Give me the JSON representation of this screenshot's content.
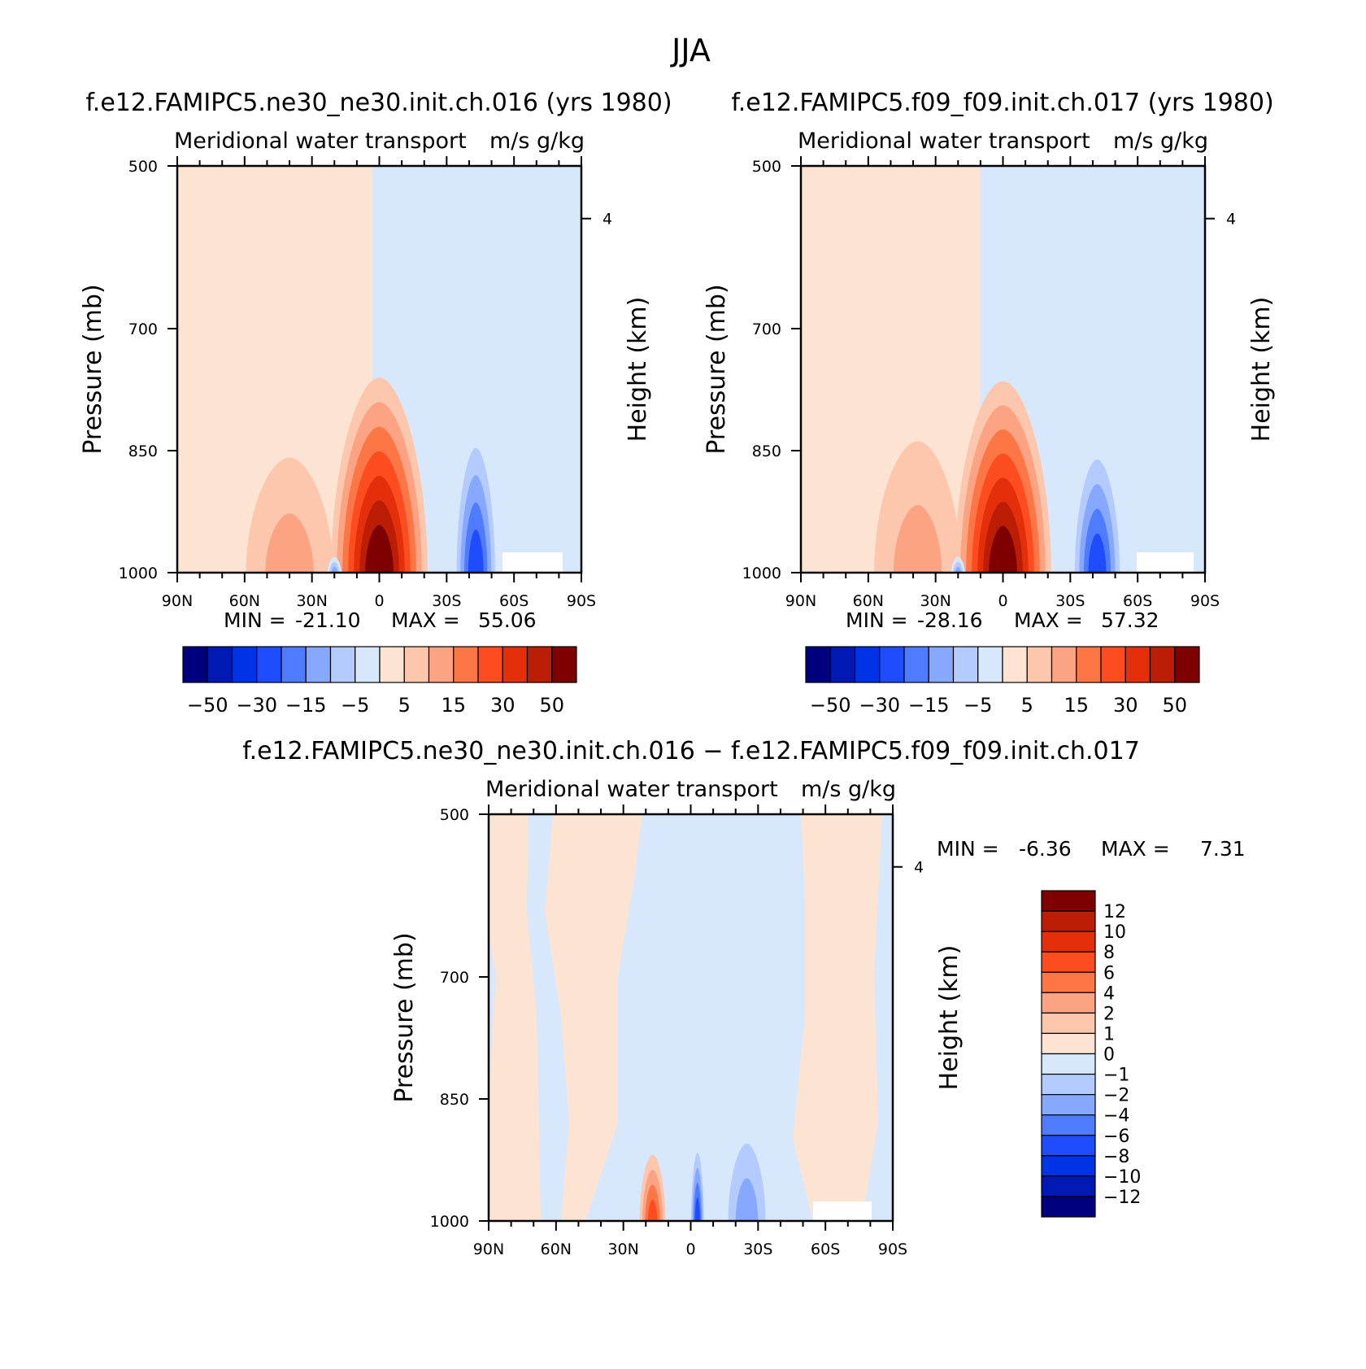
{
  "figure_title": "JJA",
  "colors": {
    "blue": [
      "#00007f",
      "#0019b3",
      "#0032e6",
      "#1f4cff",
      "#4f7cff",
      "#86a8ff",
      "#b4cbff",
      "#d7e8fc"
    ],
    "red": [
      "#fde4d2",
      "#fdc7ad",
      "#fca383",
      "#fd7646",
      "#fd4d20",
      "#e3300a",
      "#bb1e05",
      "#7f0000"
    ]
  },
  "chart_data": [
    {
      "type": "heatmap",
      "title": "f.e12.FAMIPC5.ne30_ne30.init.ch.016 (yrs 1980)",
      "subtitle": "Meridional water transport",
      "units": "m/s g/kg",
      "ylabel": "Pressure (mb)",
      "ylabel_right": "Height (km)",
      "x_tick_labels": [
        "90N",
        "60N",
        "30N",
        "0",
        "30S",
        "60S",
        "90S"
      ],
      "y_tick_labels": [
        "500",
        "700",
        "850",
        "1000"
      ],
      "y_tick_values": [
        500,
        700,
        850,
        1000
      ],
      "right_tick_label": "4",
      "xlim": [
        90,
        -90
      ],
      "ylim": [
        500,
        1000
      ],
      "min_label": "MIN =",
      "min_value": "-21.10",
      "max_label": "MAX =",
      "max_value": "55.06",
      "colorbar": {
        "orientation": "horizontal",
        "levels": [
          -60,
          -50,
          -40,
          -30,
          -20,
          -15,
          -10,
          -5,
          0,
          5,
          10,
          15,
          20,
          30,
          40,
          50,
          60
        ],
        "tick_labels": [
          "-50",
          "-30",
          "-15",
          "-5",
          "5",
          "15",
          "30",
          "50"
        ]
      },
      "features": [
        {
          "kind": "tongue",
          "lat": 0,
          "half_width": 24,
          "base": 1000,
          "top": 730,
          "peak": 55
        },
        {
          "kind": "tongue",
          "lat": 40,
          "half_width": 28,
          "base": 1000,
          "top": 790,
          "peak": 12
        },
        {
          "kind": "tongue",
          "lat": -43,
          "half_width": 12,
          "base": 1000,
          "top": 780,
          "peak": -21
        },
        {
          "kind": "tongue",
          "lat": 20,
          "half_width": 4,
          "base": 1000,
          "top": 975,
          "peak": -12
        }
      ]
    },
    {
      "type": "heatmap",
      "title": "f.e12.FAMIPC5.f09_f09.init.ch.017 (yrs 1980)",
      "subtitle": "Meridional water transport",
      "units": "m/s g/kg",
      "ylabel": "Pressure (mb)",
      "ylabel_right": "Height (km)",
      "x_tick_labels": [
        "90N",
        "60N",
        "30N",
        "0",
        "30S",
        "60S",
        "90S"
      ],
      "y_tick_labels": [
        "500",
        "700",
        "850",
        "1000"
      ],
      "y_tick_values": [
        500,
        700,
        850,
        1000
      ],
      "right_tick_label": "4",
      "xlim": [
        90,
        -90
      ],
      "ylim": [
        500,
        1000
      ],
      "min_label": "MIN =",
      "min_value": "-28.16",
      "max_label": "MAX =",
      "max_value": "57.32",
      "colorbar": {
        "orientation": "horizontal",
        "levels": [
          -60,
          -50,
          -40,
          -30,
          -20,
          -15,
          -10,
          -5,
          0,
          5,
          10,
          15,
          20,
          30,
          40,
          50,
          60
        ],
        "tick_labels": [
          "-50",
          "-30",
          "-15",
          "-5",
          "5",
          "15",
          "30",
          "50"
        ]
      },
      "features": [
        {
          "kind": "tongue",
          "lat": 0,
          "half_width": 24,
          "base": 1000,
          "top": 735,
          "peak": 57
        },
        {
          "kind": "tongue",
          "lat": 38,
          "half_width": 28,
          "base": 1000,
          "top": 760,
          "peak": 12
        },
        {
          "kind": "tongue",
          "lat": -42,
          "half_width": 14,
          "base": 1000,
          "top": 800,
          "peak": -28
        },
        {
          "kind": "tongue",
          "lat": 20,
          "half_width": 4,
          "base": 1000,
          "top": 975,
          "peak": -14
        }
      ]
    },
    {
      "type": "heatmap",
      "title": "f.e12.FAMIPC5.ne30_ne30.init.ch.016 − f.e12.FAMIPC5.f09_f09.init.ch.017",
      "subtitle": "Meridional water transport",
      "units": "m/s g/kg",
      "ylabel": "Pressure (mb)",
      "ylabel_right": "Height (km)",
      "x_tick_labels": [
        "90N",
        "60N",
        "30N",
        "0",
        "30S",
        "60S",
        "90S"
      ],
      "y_tick_labels": [
        "500",
        "700",
        "850",
        "1000"
      ],
      "y_tick_values": [
        500,
        700,
        850,
        1000
      ],
      "right_tick_label": "4",
      "xlim": [
        90,
        -90
      ],
      "ylim": [
        500,
        1000
      ],
      "min_label": "MIN =",
      "min_value": "-6.36",
      "max_label": "MAX =",
      "max_value": "7.31",
      "colorbar": {
        "orientation": "vertical",
        "levels": [
          -14,
          -12,
          -10,
          -8,
          -6,
          -4,
          -2,
          -1,
          0,
          1,
          2,
          4,
          6,
          8,
          10,
          12,
          14
        ],
        "tick_labels": [
          "12",
          "10",
          "8",
          "6",
          "4",
          "2",
          "1",
          "0",
          "−1",
          "−2",
          "−4",
          "−6",
          "−8",
          "−10",
          "−12"
        ]
      },
      "features": [
        {
          "kind": "tongue",
          "lat": 17,
          "half_width": 7,
          "base": 1000,
          "top": 900,
          "peak": 7.3
        },
        {
          "kind": "tongue",
          "lat": -3,
          "half_width": 4,
          "base": 1000,
          "top": 880,
          "peak": -6.4
        },
        {
          "kind": "tongue",
          "lat": -25,
          "half_width": 15,
          "base": 1000,
          "top": 820,
          "peak": -2.5
        }
      ]
    }
  ]
}
